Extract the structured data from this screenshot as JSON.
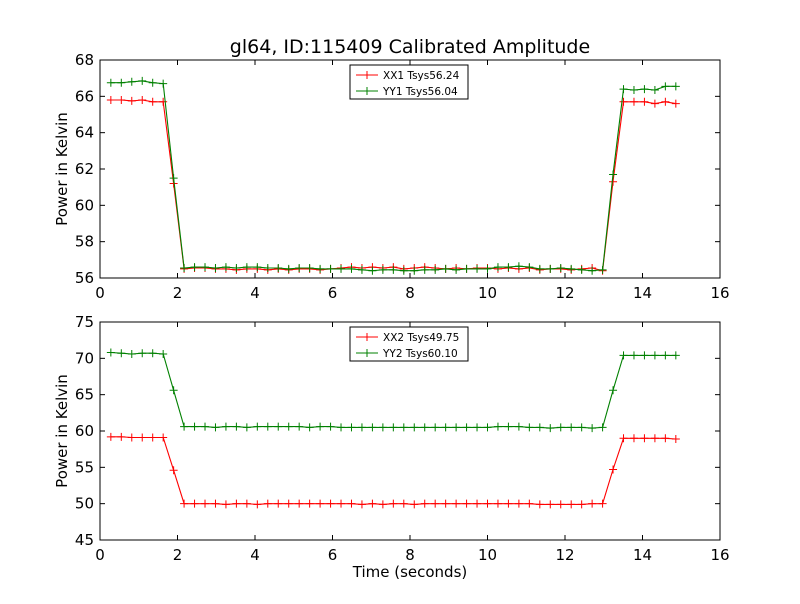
{
  "title": "gl64, ID:115409 Calibrated Amplitude",
  "chart_data": [
    {
      "type": "line",
      "title": "gl64, ID:115409 Calibrated Amplitude",
      "xlabel": "",
      "ylabel": "Power in Kelvin",
      "xlim": [
        0,
        16
      ],
      "ylim": [
        56,
        68
      ],
      "xticks": [
        0,
        2,
        4,
        6,
        8,
        10,
        12,
        14,
        16
      ],
      "yticks": [
        56,
        58,
        60,
        62,
        64,
        66,
        68
      ],
      "grid": false,
      "legend_position": "top-center",
      "x": [
        0.28,
        0.55,
        0.82,
        1.09,
        1.36,
        1.63,
        1.9,
        2.17,
        2.44,
        2.71,
        2.98,
        3.25,
        3.52,
        3.79,
        4.06,
        4.33,
        4.6,
        4.87,
        5.14,
        5.41,
        5.68,
        5.95,
        6.22,
        6.49,
        6.76,
        7.03,
        7.3,
        7.57,
        7.84,
        8.11,
        8.38,
        8.65,
        8.92,
        9.19,
        9.46,
        9.73,
        10.0,
        10.27,
        10.54,
        10.81,
        11.08,
        11.35,
        11.62,
        11.89,
        12.16,
        12.43,
        12.7,
        12.97,
        13.24,
        13.51,
        13.78,
        14.05,
        14.32,
        14.59,
        14.86
      ],
      "series": [
        {
          "name": "XX1 Tsys56.24",
          "color": "#ff0000",
          "values": [
            65.8,
            65.8,
            65.75,
            65.8,
            65.7,
            65.7,
            61.2,
            56.5,
            56.55,
            56.55,
            56.5,
            56.5,
            56.45,
            56.5,
            56.5,
            56.45,
            56.5,
            56.45,
            56.5,
            56.5,
            56.45,
            56.5,
            56.55,
            56.6,
            56.55,
            56.6,
            56.55,
            56.6,
            56.5,
            56.55,
            56.6,
            56.55,
            56.5,
            56.55,
            56.5,
            56.55,
            56.55,
            56.5,
            56.55,
            56.5,
            56.55,
            56.45,
            56.5,
            56.5,
            56.45,
            56.5,
            56.55,
            56.4,
            61.3,
            65.7,
            65.7,
            65.7,
            65.6,
            65.7,
            65.6
          ]
        },
        {
          "name": "YY1 Tsys56.04",
          "color": "#008000",
          "values": [
            66.75,
            66.75,
            66.8,
            66.85,
            66.75,
            66.7,
            61.5,
            56.55,
            56.6,
            56.6,
            56.55,
            56.6,
            56.55,
            56.6,
            56.6,
            56.55,
            56.55,
            56.5,
            56.55,
            56.55,
            56.5,
            56.5,
            56.5,
            56.5,
            56.45,
            56.4,
            56.45,
            56.45,
            56.4,
            56.4,
            56.45,
            56.45,
            56.5,
            56.45,
            56.5,
            56.5,
            56.5,
            56.6,
            56.6,
            56.65,
            56.6,
            56.5,
            56.5,
            56.55,
            56.5,
            56.45,
            56.4,
            56.45,
            61.7,
            66.4,
            66.35,
            66.4,
            66.35,
            66.55,
            66.55
          ]
        }
      ]
    },
    {
      "type": "line",
      "title": "",
      "xlabel": "Time (seconds)",
      "ylabel": "Power in Kelvin",
      "xlim": [
        0,
        16
      ],
      "ylim": [
        45,
        75
      ],
      "xticks": [
        0,
        2,
        4,
        6,
        8,
        10,
        12,
        14,
        16
      ],
      "yticks": [
        45,
        50,
        55,
        60,
        65,
        70,
        75
      ],
      "grid": false,
      "legend_position": "top-center",
      "x": [
        0.28,
        0.55,
        0.82,
        1.09,
        1.36,
        1.63,
        1.9,
        2.17,
        2.44,
        2.71,
        2.98,
        3.25,
        3.52,
        3.79,
        4.06,
        4.33,
        4.6,
        4.87,
        5.14,
        5.41,
        5.68,
        5.95,
        6.22,
        6.49,
        6.76,
        7.03,
        7.3,
        7.57,
        7.84,
        8.11,
        8.38,
        8.65,
        8.92,
        9.19,
        9.46,
        9.73,
        10.0,
        10.27,
        10.54,
        10.81,
        11.08,
        11.35,
        11.62,
        11.89,
        12.16,
        12.43,
        12.7,
        12.97,
        13.24,
        13.51,
        13.78,
        14.05,
        14.32,
        14.59,
        14.86
      ],
      "series": [
        {
          "name": "XX2 Tsys49.75",
          "color": "#ff0000",
          "values": [
            59.2,
            59.2,
            59.1,
            59.1,
            59.1,
            59.1,
            54.6,
            50.0,
            50.0,
            50.0,
            50.0,
            49.9,
            50.0,
            50.0,
            49.9,
            50.0,
            50.0,
            50.0,
            50.0,
            50.0,
            50.0,
            50.0,
            50.0,
            50.0,
            49.9,
            50.0,
            49.9,
            50.0,
            50.0,
            49.9,
            50.0,
            50.0,
            50.0,
            50.0,
            50.0,
            50.0,
            50.0,
            50.0,
            50.0,
            50.0,
            50.0,
            49.9,
            49.9,
            49.9,
            49.9,
            49.9,
            50.0,
            50.0,
            54.7,
            59.0,
            59.0,
            59.0,
            59.0,
            59.0,
            58.9
          ]
        },
        {
          "name": "YY2 Tsys60.10",
          "color": "#008000",
          "values": [
            70.8,
            70.7,
            70.6,
            70.7,
            70.7,
            70.6,
            65.6,
            60.6,
            60.6,
            60.6,
            60.5,
            60.6,
            60.6,
            60.5,
            60.6,
            60.6,
            60.6,
            60.6,
            60.6,
            60.5,
            60.6,
            60.6,
            60.5,
            60.5,
            60.5,
            60.5,
            60.5,
            60.5,
            60.5,
            60.5,
            60.5,
            60.5,
            60.5,
            60.5,
            60.5,
            60.5,
            60.5,
            60.6,
            60.6,
            60.6,
            60.5,
            60.5,
            60.4,
            60.5,
            60.5,
            60.5,
            60.4,
            60.5,
            65.6,
            70.4,
            70.4,
            70.4,
            70.4,
            70.4,
            70.4
          ]
        }
      ]
    }
  ]
}
